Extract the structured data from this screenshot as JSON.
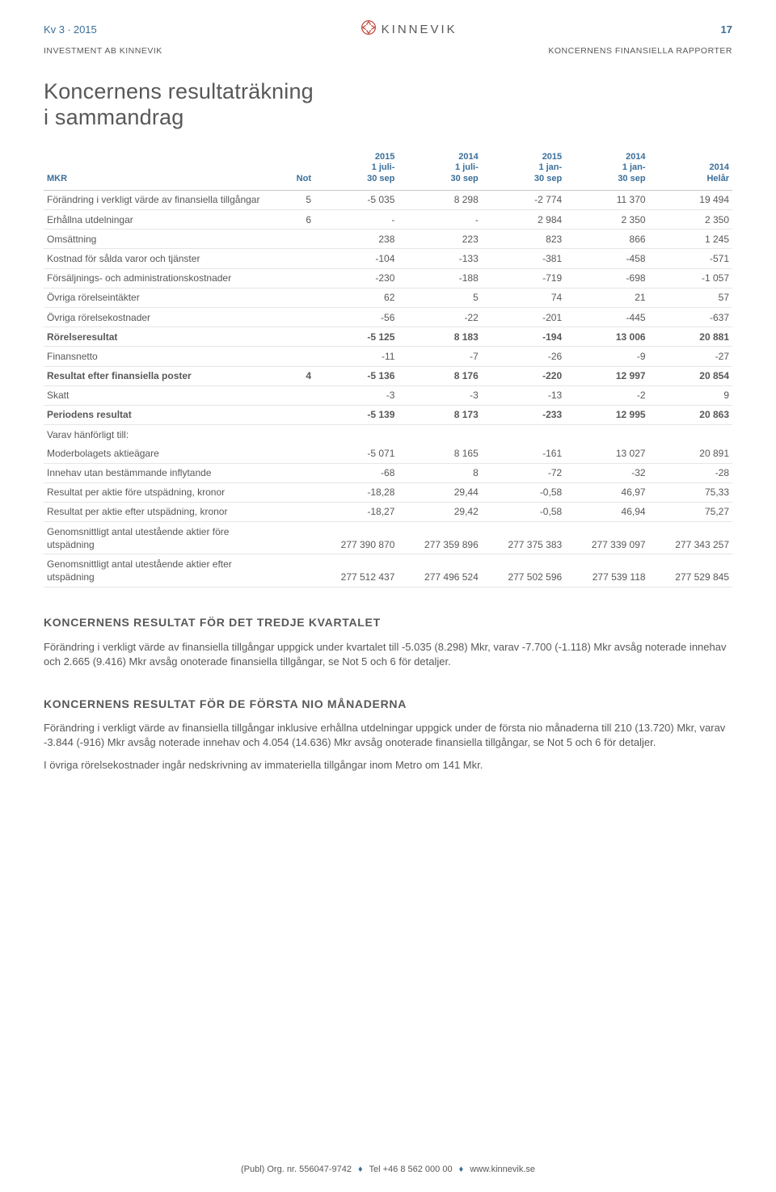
{
  "doc": {
    "quarter": "Kv 3 ∙ 2015",
    "page_number": "17",
    "company_line": "INVESTMENT AB KINNEVIK",
    "section_line": "KONCERNENS FINANSIELLA RAPPORTER",
    "logo_text": "KINNEVIK",
    "title_line1": "Koncernens resultaträkning",
    "title_line2": "i sammandrag",
    "accent_color": "#3a6f9a",
    "text_color": "#58585a",
    "rule_color": "#e6e6e6",
    "header_rule_color": "#c9c9c9",
    "bg": "#ffffff"
  },
  "table": {
    "headers": [
      "MKR",
      "Not",
      "2015\n1 juli-\n30 sep",
      "2014\n1 juli-\n30 sep",
      "2015\n1 jan-\n30 sep",
      "2014\n1 jan-\n30 sep",
      "2014\nHelår"
    ],
    "rows": [
      {
        "label": "Förändring i verkligt värde av finansiella tillgångar",
        "not": "5",
        "c": [
          "-5 035",
          "8 298",
          "-2 774",
          "11 370",
          "19 494"
        ],
        "bold": false
      },
      {
        "label": "Erhållna utdelningar",
        "not": "6",
        "c": [
          "-",
          "-",
          "2 984",
          "2 350",
          "2 350"
        ],
        "bold": false
      },
      {
        "label": "Omsättning",
        "not": "",
        "c": [
          "238",
          "223",
          "823",
          "866",
          "1 245"
        ],
        "bold": false
      },
      {
        "label": "Kostnad för sålda varor och tjänster",
        "not": "",
        "c": [
          "-104",
          "-133",
          "-381",
          "-458",
          "-571"
        ],
        "bold": false
      },
      {
        "label": "Försäljnings- och administrationskostnader",
        "not": "",
        "c": [
          "-230",
          "-188",
          "-719",
          "-698",
          "-1 057"
        ],
        "bold": false
      },
      {
        "label": "Övriga rörelseintäkter",
        "not": "",
        "c": [
          "62",
          "5",
          "74",
          "21",
          "57"
        ],
        "bold": false
      },
      {
        "label": "Övriga rörelsekostnader",
        "not": "",
        "c": [
          "-56",
          "-22",
          "-201",
          "-445",
          "-637"
        ],
        "bold": false
      },
      {
        "label": "Rörelseresultat",
        "not": "",
        "c": [
          "-5 125",
          "8 183",
          "-194",
          "13 006",
          "20 881"
        ],
        "bold": true
      },
      {
        "label": "Finansnetto",
        "not": "",
        "c": [
          "-11",
          "-7",
          "-26",
          "-9",
          "-27"
        ],
        "bold": false
      },
      {
        "label": "Resultat efter finansiella poster",
        "not": "4",
        "c": [
          "-5 136",
          "8 176",
          "-220",
          "12 997",
          "20 854"
        ],
        "bold": true
      },
      {
        "label": "Skatt",
        "not": "",
        "c": [
          "-3",
          "-3",
          "-13",
          "-2",
          "9"
        ],
        "bold": false
      },
      {
        "label": "Periodens resultat",
        "not": "",
        "c": [
          "-5 139",
          "8 173",
          "-233",
          "12 995",
          "20 863"
        ],
        "bold": true
      },
      {
        "label": "Varav hänförligt till:",
        "not": "",
        "c": [
          "",
          "",
          "",
          "",
          ""
        ],
        "bold": false,
        "nosep": true
      },
      {
        "label": "Moderbolagets aktieägare",
        "not": "",
        "c": [
          "-5 071",
          "8 165",
          "-161",
          "13 027",
          "20 891"
        ],
        "bold": false
      },
      {
        "label": "Innehav utan bestämmande inflytande",
        "not": "",
        "c": [
          "-68",
          "8",
          "-72",
          "-32",
          "-28"
        ],
        "bold": false
      },
      {
        "label": "Resultat per aktie före utspädning, kronor",
        "not": "",
        "c": [
          "-18,28",
          "29,44",
          "-0,58",
          "46,97",
          "75,33"
        ],
        "bold": false
      },
      {
        "label": "Resultat per aktie efter utspädning, kronor",
        "not": "",
        "c": [
          "-18,27",
          "29,42",
          "-0,58",
          "46,94",
          "75,27"
        ],
        "bold": false
      },
      {
        "label": "Genomsnittligt antal utestående aktier före utspädning",
        "not": "",
        "c": [
          "277 390 870",
          "277 359 896",
          "277 375 383",
          "277 339 097",
          "277 343 257"
        ],
        "bold": false
      },
      {
        "label": "Genomsnittligt antal utestående aktier efter utspädning",
        "not": "",
        "c": [
          "277 512 437",
          "277 496 524",
          "277 502 596",
          "277 539 118",
          "277 529 845"
        ],
        "bold": false
      }
    ]
  },
  "sec1": {
    "heading": "KONCERNENS RESULTAT FÖR DET TREDJE KVARTALET",
    "p1": "Förändring i verkligt värde av finansiella tillgångar uppgick under kvartalet till -5.035 (8.298) Mkr, varav -7.700 (-1.118) Mkr avsåg noterade innehav och 2.665 (9.416) Mkr avsåg onoterade finansiella tillgångar, se Not 5 och 6 för detaljer."
  },
  "sec2": {
    "heading": "KONCERNENS RESULTAT FÖR DE FÖRSTA NIO MÅNADERNA",
    "p1": "Förändring i verkligt värde av finansiella tillgångar inklusive erhållna utdelningar uppgick under de första nio månaderna till 210 (13.720) Mkr, varav -3.844 (-916) Mkr avsåg noterade innehav och 4.054 (14.636) Mkr avsåg onoterade finansiella tillgångar, se Not 5 och 6 för detaljer.",
    "p2": "I övriga rörelsekostnader ingår nedskrivning av immateriella tillgångar inom Metro om 141 Mkr."
  },
  "footer": {
    "publ": "(Publ) Org. nr. 556047-9742",
    "tel": "Tel +46 8 562 000 00",
    "url": "www.kinnevik.se"
  }
}
